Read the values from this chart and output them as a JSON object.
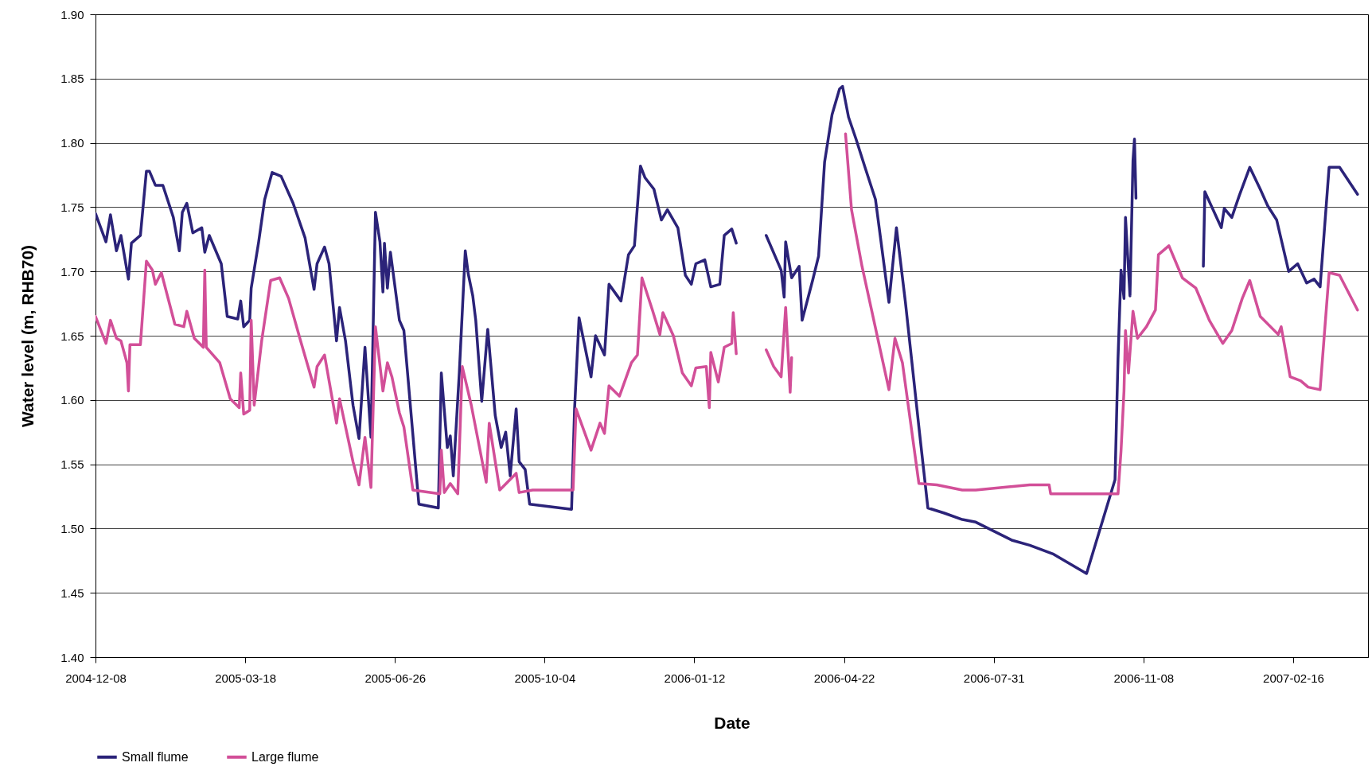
{
  "chart_data": {
    "type": "line",
    "xlabel": "Date",
    "ylabel": "Water level (m, RHB70)",
    "xlim": [
      "2004-12-08",
      "2007-04-07"
    ],
    "xticks": [
      "2004-12-08",
      "2005-03-18",
      "2005-06-26",
      "2005-10-04",
      "2006-01-12",
      "2006-04-22",
      "2006-07-31",
      "2006-11-08",
      "2007-02-16"
    ],
    "ylim": [
      1.4,
      1.9
    ],
    "yticks": [
      {
        "value": 1.4,
        "label": "1.40"
      },
      {
        "value": 1.45,
        "label": "1.45"
      },
      {
        "value": 1.5,
        "label": "1.50"
      },
      {
        "value": 1.55,
        "label": "1.55"
      },
      {
        "value": 1.6,
        "label": "1.60"
      },
      {
        "value": 1.65,
        "label": "1.65"
      },
      {
        "value": 1.7,
        "label": "1.70"
      },
      {
        "value": 1.75,
        "label": "1.75"
      },
      {
        "value": 1.8,
        "label": "1.80"
      },
      {
        "value": 1.85,
        "label": "1.85"
      },
      {
        "value": 1.9,
        "label": "1.90"
      }
    ],
    "grid": "y",
    "legend": "bottom",
    "line_style": "solid",
    "series": [
      {
        "name": "Small flume",
        "color": "#2b2379",
        "x": [
          "2004-12-08",
          "2004-12-15",
          "2004-12-18",
          "2004-12-22",
          "2004-12-25",
          "2004-12-30",
          "2005-01-01",
          "2005-01-07",
          "2005-01-11",
          "2005-01-13",
          "2005-01-17",
          "2005-01-22",
          "2005-01-29",
          "2005-02-02",
          "2005-02-04",
          "2005-02-07",
          "2005-02-11",
          "2005-02-17",
          "2005-02-19",
          "2005-02-22",
          "2005-03-02",
          "2005-03-06",
          "2005-03-13",
          "2005-03-15",
          "2005-03-17",
          "2005-03-21",
          "2005-03-22",
          "2005-03-27",
          "2005-03-31",
          "2005-04-05",
          "2005-04-11",
          "2005-04-19",
          "2005-04-27",
          "2005-05-03",
          "2005-05-05",
          "2005-05-10",
          "2005-05-13",
          "2005-05-18",
          "2005-05-20",
          "2005-05-24",
          "2005-05-29",
          "2005-06-02",
          "2005-06-06",
          "2005-06-10",
          "2005-06-13",
          "2005-06-16",
          "2005-06-18",
          "2005-06-19",
          "2005-06-21",
          "2005-06-23",
          "2005-06-29",
          "2005-07-02",
          "2005-07-12",
          "2005-07-25",
          "2005-07-27",
          "2005-07-31",
          "2005-08-02",
          "2005-08-04",
          "2005-08-08",
          "2005-08-12",
          "2005-08-14",
          "2005-08-17",
          "2005-08-19",
          "2005-08-23",
          "2005-08-27",
          "2005-09-01",
          "2005-09-05",
          "2005-09-08",
          "2005-09-11",
          "2005-09-15",
          "2005-09-17",
          "2005-09-21",
          "2005-09-24",
          "2005-10-22",
          "2005-10-24",
          "2005-10-27",
          "2005-11-04",
          "2005-11-07",
          "2005-11-13",
          "2005-11-16",
          "2005-11-24",
          "2005-11-29",
          "2005-12-03",
          "2005-12-07",
          "2005-12-10",
          "2005-12-16",
          "2005-12-21",
          "2005-12-25",
          "2006-01-01",
          "2006-01-06",
          "2006-01-10",
          "2006-01-13",
          "2006-01-19",
          "2006-01-23",
          "2006-01-29",
          "2006-02-01",
          "2006-02-06",
          "2006-02-09",
          "2006-02-19",
          "2006-03-01",
          "2006-03-11",
          "2006-03-13",
          "2006-03-14",
          "2006-03-18",
          "2006-03-23",
          "2006-03-25",
          "2006-04-01",
          "2006-04-05",
          "2006-04-09",
          "2006-04-14",
          "2006-04-19",
          "2006-04-21",
          "2006-04-25",
          "2006-04-30",
          "2006-05-06",
          "2006-05-13",
          "2006-05-22",
          "2006-05-27",
          "2006-06-02",
          "2006-06-11",
          "2006-06-17",
          "2006-06-28",
          "2006-07-10",
          "2006-07-19",
          "2006-08-12",
          "2006-08-24",
          "2006-09-09",
          "2006-10-01",
          "2006-10-20",
          "2006-10-22",
          "2006-10-24",
          "2006-10-26",
          "2006-10-27",
          "2006-10-30",
          "2006-11-01",
          "2006-11-02",
          "2006-11-03",
          "2006-11-25",
          "2006-12-18",
          "2006-12-19",
          "2006-12-30",
          "2007-01-01",
          "2007-01-06",
          "2007-01-11",
          "2007-01-18",
          "2007-01-25",
          "2007-01-30",
          "2007-02-05",
          "2007-02-13",
          "2007-02-19",
          "2007-02-25",
          "2007-03-02",
          "2007-03-06",
          "2007-03-12",
          "2007-03-19",
          "2007-03-31"
        ],
        "values": [
          1.745,
          1.723,
          1.744,
          1.716,
          1.728,
          1.694,
          1.722,
          1.728,
          1.778,
          1.778,
          1.767,
          1.767,
          1.742,
          1.716,
          1.746,
          1.753,
          1.73,
          1.734,
          1.715,
          1.728,
          1.706,
          1.665,
          1.663,
          1.677,
          1.657,
          1.662,
          1.687,
          1.723,
          1.756,
          1.777,
          1.774,
          1.753,
          1.726,
          1.686,
          1.706,
          1.719,
          1.706,
          1.646,
          1.672,
          1.646,
          1.596,
          1.57,
          1.641,
          1.571,
          1.746,
          1.723,
          1.684,
          1.722,
          1.687,
          1.715,
          1.662,
          1.654,
          1.519,
          1.516,
          1.621,
          1.563,
          1.572,
          1.541,
          1.621,
          1.716,
          1.698,
          1.681,
          1.662,
          1.599,
          1.655,
          1.588,
          1.563,
          1.575,
          1.541,
          1.593,
          1.552,
          1.546,
          1.519,
          1.515,
          1.593,
          1.664,
          1.618,
          1.65,
          1.635,
          1.69,
          1.677,
          1.713,
          1.72,
          1.782,
          1.773,
          1.764,
          1.74,
          1.748,
          1.734,
          1.697,
          1.69,
          1.706,
          1.709,
          1.688,
          1.69,
          1.728,
          1.733,
          1.722,
          null,
          1.728,
          1.701,
          1.68,
          1.723,
          1.695,
          1.704,
          1.662,
          1.693,
          1.712,
          1.785,
          1.822,
          1.842,
          1.844,
          1.82,
          1.803,
          1.781,
          1.756,
          1.676,
          1.734,
          1.676,
          1.579,
          1.516,
          1.512,
          1.507,
          1.505,
          1.491,
          1.487,
          1.48,
          1.465,
          1.538,
          1.632,
          1.701,
          1.679,
          1.742,
          1.681,
          1.786,
          1.803,
          1.757,
          null,
          1.704,
          1.762,
          1.734,
          1.749,
          1.742,
          1.759,
          1.781,
          1.764,
          1.751,
          1.74,
          1.7,
          1.706,
          1.691,
          1.694,
          1.688,
          1.781,
          1.781,
          1.76
        ]
      },
      {
        "name": "Large flume",
        "color": "#d24f98",
        "x": [
          "2004-12-08",
          "2004-12-15",
          "2004-12-18",
          "2004-12-22",
          "2004-12-25",
          "2004-12-29",
          "2004-12-30",
          "2004-12-31",
          "2005-01-07",
          "2005-01-11",
          "2005-01-15",
          "2005-01-17",
          "2005-01-21",
          "2005-01-30",
          "2005-02-05",
          "2005-02-07",
          "2005-02-12",
          "2005-02-18",
          "2005-02-19",
          "2005-02-20",
          "2005-03-01",
          "2005-03-08",
          "2005-03-14",
          "2005-03-15",
          "2005-03-17",
          "2005-03-21",
          "2005-03-22",
          "2005-03-24",
          "2005-03-29",
          "2005-04-04",
          "2005-04-10",
          "2005-04-16",
          "2005-04-24",
          "2005-05-03",
          "2005-05-05",
          "2005-05-10",
          "2005-05-18",
          "2005-05-20",
          "2005-05-29",
          "2005-06-02",
          "2005-06-06",
          "2005-06-10",
          "2005-06-13",
          "2005-06-18",
          "2005-06-21",
          "2005-06-24",
          "2005-06-29",
          "2005-07-02",
          "2005-07-08",
          "2005-07-26",
          "2005-07-27",
          "2005-07-29",
          "2005-08-02",
          "2005-08-07",
          "2005-08-10",
          "2005-08-16",
          "2005-08-26",
          "2005-08-28",
          "2005-09-04",
          "2005-09-15",
          "2005-09-17",
          "2005-09-26",
          "2005-10-23",
          "2005-10-25",
          "2005-11-04",
          "2005-11-10",
          "2005-11-13",
          "2005-11-16",
          "2005-11-23",
          "2005-12-01",
          "2005-12-05",
          "2005-12-08",
          "2005-12-15",
          "2005-12-20",
          "2005-12-22",
          "2005-12-29",
          "2006-01-04",
          "2006-01-10",
          "2006-01-13",
          "2006-01-20",
          "2006-01-22",
          "2006-01-23",
          "2006-01-28",
          "2006-02-01",
          "2006-02-06",
          "2006-02-07",
          "2006-02-09",
          "2006-02-19",
          "2006-03-01",
          "2006-03-06",
          "2006-03-11",
          "2006-03-14",
          "2006-03-17",
          "2006-03-18",
          "2006-04-05",
          "2006-04-23",
          "2006-04-27",
          "2006-05-04",
          "2006-05-22",
          "2006-05-26",
          "2006-05-31",
          "2006-06-11",
          "2006-06-23",
          "2006-07-10",
          "2006-07-19",
          "2006-08-24",
          "2006-09-06",
          "2006-09-07",
          "2006-10-22",
          "2006-10-24",
          "2006-10-26",
          "2006-10-27",
          "2006-10-29",
          "2006-11-01",
          "2006-11-04",
          "2006-11-10",
          "2006-11-16",
          "2006-11-18",
          "2006-11-25",
          "2006-12-04",
          "2006-12-13",
          "2006-12-22",
          "2006-12-31",
          "2007-01-06",
          "2007-01-13",
          "2007-01-18",
          "2007-01-25",
          "2007-02-06",
          "2007-02-08",
          "2007-02-14",
          "2007-02-21",
          "2007-02-26",
          "2007-03-06",
          "2007-03-12",
          "2007-03-19",
          "2007-03-31"
        ],
        "values": [
          1.665,
          1.644,
          1.662,
          1.648,
          1.646,
          1.629,
          1.607,
          1.643,
          1.643,
          1.708,
          1.701,
          1.69,
          1.699,
          1.659,
          1.657,
          1.669,
          1.648,
          1.641,
          1.701,
          1.641,
          1.629,
          1.601,
          1.594,
          1.621,
          1.589,
          1.592,
          1.662,
          1.596,
          1.646,
          1.693,
          1.695,
          1.679,
          1.646,
          1.61,
          1.626,
          1.635,
          1.582,
          1.601,
          1.552,
          1.534,
          1.571,
          1.532,
          1.657,
          1.607,
          1.629,
          1.618,
          1.59,
          1.579,
          1.53,
          1.527,
          1.561,
          1.528,
          1.535,
          1.527,
          1.626,
          1.596,
          1.536,
          1.582,
          1.53,
          1.543,
          1.528,
          1.53,
          1.53,
          1.593,
          1.561,
          1.582,
          1.574,
          1.611,
          1.603,
          1.629,
          1.635,
          1.695,
          1.67,
          1.651,
          1.668,
          1.65,
          1.621,
          1.611,
          1.625,
          1.626,
          1.594,
          1.637,
          1.614,
          1.641,
          1.644,
          1.668,
          1.636,
          null,
          1.639,
          1.626,
          1.618,
          1.672,
          1.606,
          1.633,
          null,
          1.807,
          1.748,
          1.704,
          1.608,
          1.648,
          1.629,
          1.535,
          1.534,
          1.53,
          1.53,
          1.534,
          1.534,
          1.527,
          1.527,
          1.56,
          1.607,
          1.654,
          1.621,
          1.669,
          1.648,
          1.657,
          1.67,
          1.713,
          1.72,
          1.695,
          1.687,
          1.662,
          1.644,
          1.654,
          1.679,
          1.693,
          1.665,
          1.651,
          1.657,
          1.618,
          1.615,
          1.61,
          1.608,
          1.699,
          1.697,
          1.67
        ]
      }
    ]
  }
}
